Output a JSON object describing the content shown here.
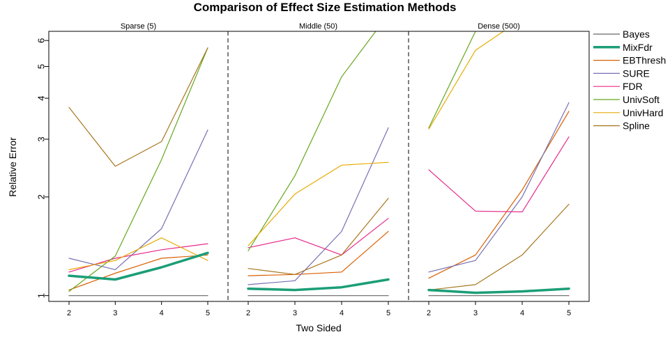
{
  "chart_data": {
    "type": "line",
    "title": "Comparison of Effect Size Estimation Methods",
    "xlabel": "Two Sided",
    "ylabel": "Relative Error",
    "y_scale": "log",
    "ylim": [
      0.96,
      6.4
    ],
    "yticks": [
      1,
      2,
      3,
      4,
      5,
      6
    ],
    "x": [
      2,
      3,
      4,
      5
    ],
    "grid": false,
    "legend_position": "right",
    "methods": [
      {
        "name": "Bayes",
        "color": "#666666",
        "width": 1.2
      },
      {
        "name": "MixFdr",
        "color": "#1b9e77",
        "width": 3.5
      },
      {
        "name": "EBThresh",
        "color": "#d95f02",
        "width": 1.2
      },
      {
        "name": "SURE",
        "color": "#7570b3",
        "width": 1.2
      },
      {
        "name": "FDR",
        "color": "#e7298a",
        "width": 1.2
      },
      {
        "name": "UnivSoft",
        "color": "#66a61e",
        "width": 1.2
      },
      {
        "name": "UnivHard",
        "color": "#e6ab02",
        "width": 1.2
      },
      {
        "name": "Spline",
        "color": "#a6761d",
        "width": 1.2
      }
    ],
    "panels": [
      {
        "label": "Sparse (5)",
        "series": {
          "Bayes": [
            1.0,
            1.0,
            1.0,
            1.0
          ],
          "MixFdr": [
            1.15,
            1.12,
            1.22,
            1.35
          ],
          "EBThresh": [
            1.04,
            1.17,
            1.3,
            1.33
          ],
          "SURE": [
            1.3,
            1.2,
            1.6,
            3.2
          ],
          "FDR": [
            1.18,
            1.3,
            1.38,
            1.44
          ],
          "UnivSoft": [
            1.03,
            1.32,
            2.6,
            5.7
          ],
          "UnivHard": [
            1.2,
            1.28,
            1.5,
            1.28
          ],
          "Spline": [
            3.75,
            2.48,
            2.95,
            5.7
          ]
        }
      },
      {
        "label": "Middle (50)",
        "series": {
          "Bayes": [
            1.0,
            1.0,
            1.0,
            1.0
          ],
          "MixFdr": [
            1.05,
            1.04,
            1.06,
            1.12
          ],
          "EBThresh": [
            1.15,
            1.16,
            1.18,
            1.57
          ],
          "SURE": [
            1.08,
            1.11,
            1.57,
            3.25
          ],
          "FDR": [
            1.4,
            1.5,
            1.33,
            1.72
          ],
          "UnivSoft": [
            1.37,
            2.32,
            4.65,
            7.2
          ],
          "UnivHard": [
            1.42,
            2.04,
            2.5,
            2.55
          ],
          "Spline": [
            1.21,
            1.16,
            1.33,
            1.98
          ]
        }
      },
      {
        "label": "Dense (500)",
        "series": {
          "Bayes": [
            1.0,
            1.0,
            1.0,
            1.0
          ],
          "MixFdr": [
            1.04,
            1.02,
            1.03,
            1.05
          ],
          "EBThresh": [
            1.13,
            1.33,
            2.1,
            3.65
          ],
          "SURE": [
            1.18,
            1.28,
            2.0,
            3.88
          ],
          "FDR": [
            2.42,
            1.81,
            1.8,
            3.05
          ],
          "UnivSoft": [
            3.25,
            6.4,
            7.0,
            7.0
          ],
          "UnivHard": [
            3.22,
            5.6,
            7.0,
            7.0
          ],
          "Spline": [
            1.04,
            1.08,
            1.33,
            1.9
          ]
        }
      }
    ]
  }
}
